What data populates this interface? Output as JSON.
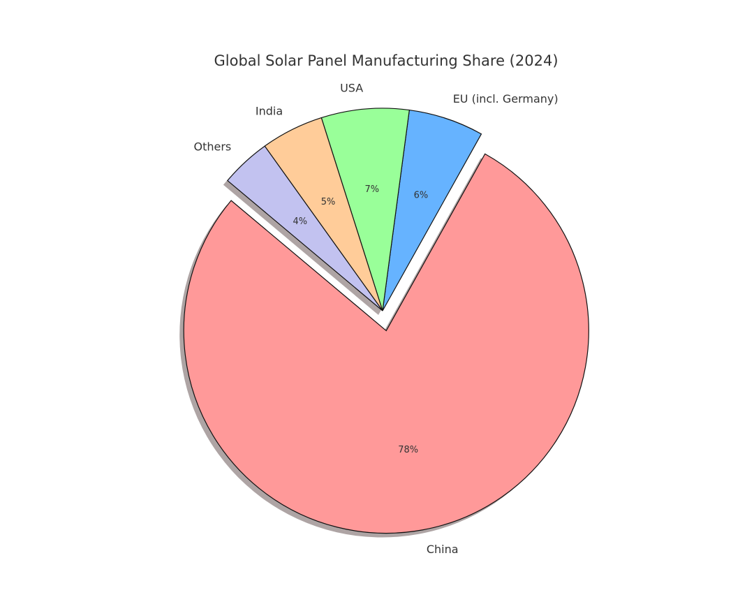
{
  "chart_data": {
    "type": "pie",
    "title": "Global Solar Panel Manufacturing Share (2024)",
    "categories": [
      "China",
      "EU (incl. Germany)",
      "USA",
      "India",
      "Others"
    ],
    "values": [
      78,
      6,
      7,
      5,
      4
    ],
    "value_labels": [
      "78%",
      "6%",
      "7%",
      "5%",
      "4%"
    ],
    "colors": [
      "#ff9999",
      "#66b3ff",
      "#99ff99",
      "#ffcc99",
      "#c2c2f0"
    ],
    "explode": [
      0.1,
      0,
      0,
      0,
      0
    ],
    "startangle": 140,
    "shadow": true
  }
}
